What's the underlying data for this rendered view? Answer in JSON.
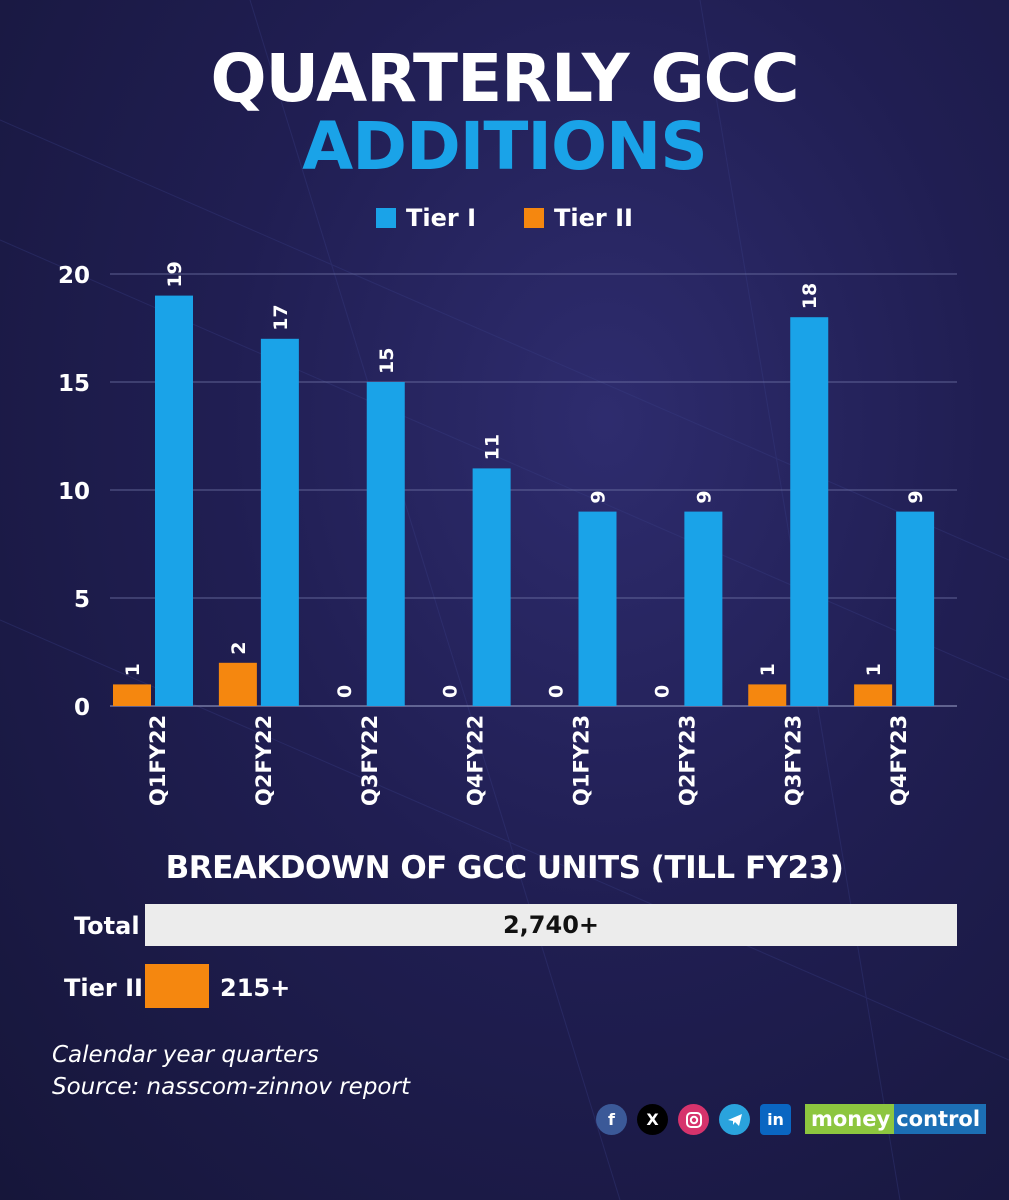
{
  "title_line1": "QUARTERLY GCC",
  "title_line2": "ADDITIONS",
  "colors": {
    "tier1": "#1aa3e8",
    "tier2": "#f5870f",
    "title_accent": "#1aa3e8"
  },
  "chart_data": {
    "type": "bar",
    "categories": [
      "Q1FY22",
      "Q2FY22",
      "Q3FY22",
      "Q4FY22",
      "Q1FY23",
      "Q2FY23",
      "Q3FY23",
      "Q4FY23"
    ],
    "series": [
      {
        "name": "Tier I",
        "values": [
          19,
          17,
          15,
          11,
          9,
          9,
          18,
          9
        ]
      },
      {
        "name": "Tier II",
        "values": [
          1,
          2,
          0,
          0,
          0,
          0,
          1,
          1
        ]
      }
    ],
    "ylim": [
      0,
      20
    ],
    "yticks": [
      0,
      5,
      10,
      15,
      20
    ],
    "grid": true,
    "legend": "top-center"
  },
  "breakdown": {
    "title": "BREAKDOWN OF GCC UNITS (TILL FY23)",
    "total_label": "Total",
    "total_value": "2,740+",
    "tier2_label": "Tier II",
    "tier2_value": "215+",
    "tier2_share": 0.078
  },
  "notes": {
    "line1": "Calendar year quarters",
    "line2": "Source: nasscom-zinnov report"
  },
  "social_icons": [
    "facebook-icon",
    "x-icon",
    "instagram-icon",
    "telegram-icon",
    "linkedin-icon"
  ],
  "brand": {
    "part1": "money",
    "part2": "control"
  }
}
